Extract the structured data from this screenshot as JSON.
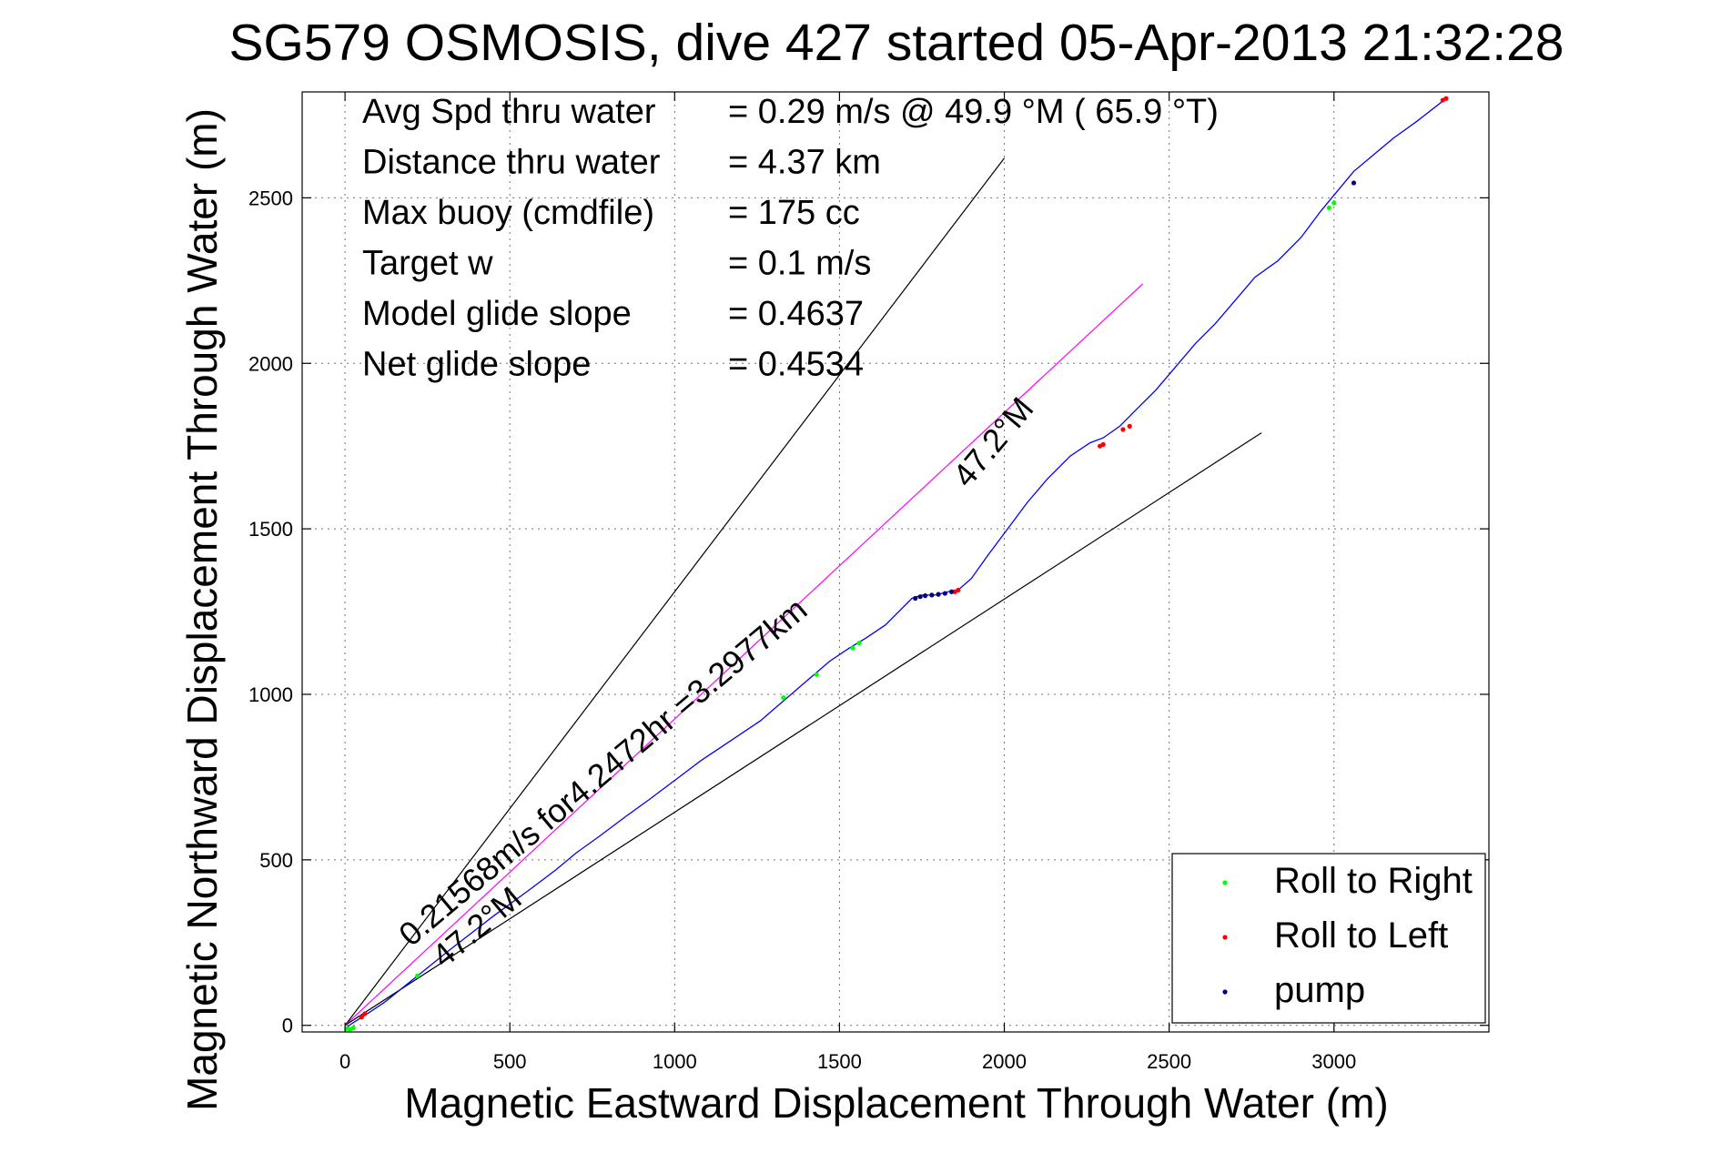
{
  "chart_data": {
    "type": "line",
    "title": "SG579 OSMOSIS, dive 427 started 05-Apr-2013 21:32:28",
    "xlabel": "Magnetic Eastward Displacement Through Water (m)",
    "ylabel": "Magnetic Northward Displacement Through Water (m)",
    "xlim": [
      -130,
      3470
    ],
    "ylim": [
      -20,
      2820
    ],
    "x_ticks": [
      0,
      500,
      1000,
      1500,
      2000,
      2500,
      3000
    ],
    "y_ticks": [
      0,
      500,
      1000,
      1500,
      2000,
      2500
    ],
    "grid": true,
    "info_lines": [
      {
        "label": "Avg Spd thru water",
        "value": "=  0.29 m/s @  49.9 °M ( 65.9 °T)"
      },
      {
        "label": "Distance thru water",
        "value": "=  4.37 km"
      },
      {
        "label": "Max buoy (cmdfile)",
        "value": "= 175 cc"
      },
      {
        "label": "Target w",
        "value": "= 0.1 m/s"
      },
      {
        "label": "Model glide slope",
        "value": "= 0.4637"
      },
      {
        "label": "Net glide slope",
        "value": "= 0.4534"
      }
    ],
    "annotations": [
      {
        "text": "0.21568m/s for4.2472hr =3.2977km",
        "x": 200,
        "y": 235,
        "angle_deg": 40
      },
      {
        "text": "47.2°M",
        "x": 300,
        "y": 170,
        "angle_deg": 40
      },
      {
        "text": "47.2°M",
        "x": 1890,
        "y": 1620,
        "angle_deg": 50
      }
    ],
    "series": [
      {
        "name": "track",
        "color": "#0000ff",
        "x": [
          0,
          20,
          60,
          120,
          220,
          320,
          450,
          560,
          640,
          700,
          770,
          850,
          920,
          1000,
          1080,
          1170,
          1260,
          1330,
          1400,
          1470,
          1530,
          1580,
          1640,
          1690,
          1720,
          1750,
          1790,
          1830,
          1860,
          1900,
          1950,
          2010,
          2070,
          2130,
          2200,
          2260,
          2300,
          2350,
          2400,
          2460,
          2520,
          2580,
          2640,
          2700,
          2760,
          2830,
          2900,
          2960,
          3010,
          3060,
          3120,
          3180,
          3250,
          3340
        ],
        "y": [
          -10,
          5,
          30,
          70,
          150,
          230,
          330,
          410,
          470,
          520,
          570,
          630,
          680,
          740,
          800,
          860,
          920,
          980,
          1040,
          1100,
          1140,
          1170,
          1210,
          1260,
          1290,
          1300,
          1300,
          1310,
          1315,
          1350,
          1420,
          1500,
          1580,
          1650,
          1720,
          1760,
          1775,
          1810,
          1860,
          1920,
          1990,
          2060,
          2120,
          2190,
          2260,
          2310,
          2380,
          2460,
          2520,
          2580,
          2630,
          2680,
          2730,
          2800
        ]
      },
      {
        "name": "Roll to Right",
        "color": "#00ff00",
        "x": [
          5,
          15,
          25,
          220,
          1330,
          1430,
          1540,
          1560,
          2985,
          3000
        ],
        "y": [
          -10,
          -12,
          -8,
          150,
          990,
          1060,
          1140,
          1155,
          2470,
          2485
        ]
      },
      {
        "name": "Roll to Left",
        "color": "#ff0000",
        "x": [
          50,
          60,
          1850,
          1860,
          2290,
          2300,
          2360,
          2380,
          3330,
          3340
        ],
        "y": [
          25,
          35,
          1310,
          1315,
          1750,
          1755,
          1800,
          1810,
          2795,
          2800
        ]
      },
      {
        "name": "pump",
        "color": "#000080",
        "x": [
          1730,
          1745,
          1760,
          1780,
          1800,
          1820,
          1840,
          3060
        ],
        "y": [
          1290,
          1295,
          1298,
          1300,
          1302,
          1305,
          1310,
          2545
        ]
      }
    ],
    "reference_lines": [
      {
        "name": "upper-bound",
        "color": "#000000",
        "x": [
          0,
          2000
        ],
        "y": [
          0,
          2620
        ]
      },
      {
        "name": "heading-47.2M",
        "color": "#ff00ff",
        "x": [
          0,
          2420
        ],
        "y": [
          0,
          2240
        ]
      },
      {
        "name": "lower-bound",
        "color": "#000000",
        "x": [
          0,
          2780
        ],
        "y": [
          0,
          1790
        ]
      }
    ],
    "legend": {
      "position": "bottom-right",
      "entries": [
        "Roll to Right",
        "Roll to Left",
        "pump"
      ]
    }
  }
}
